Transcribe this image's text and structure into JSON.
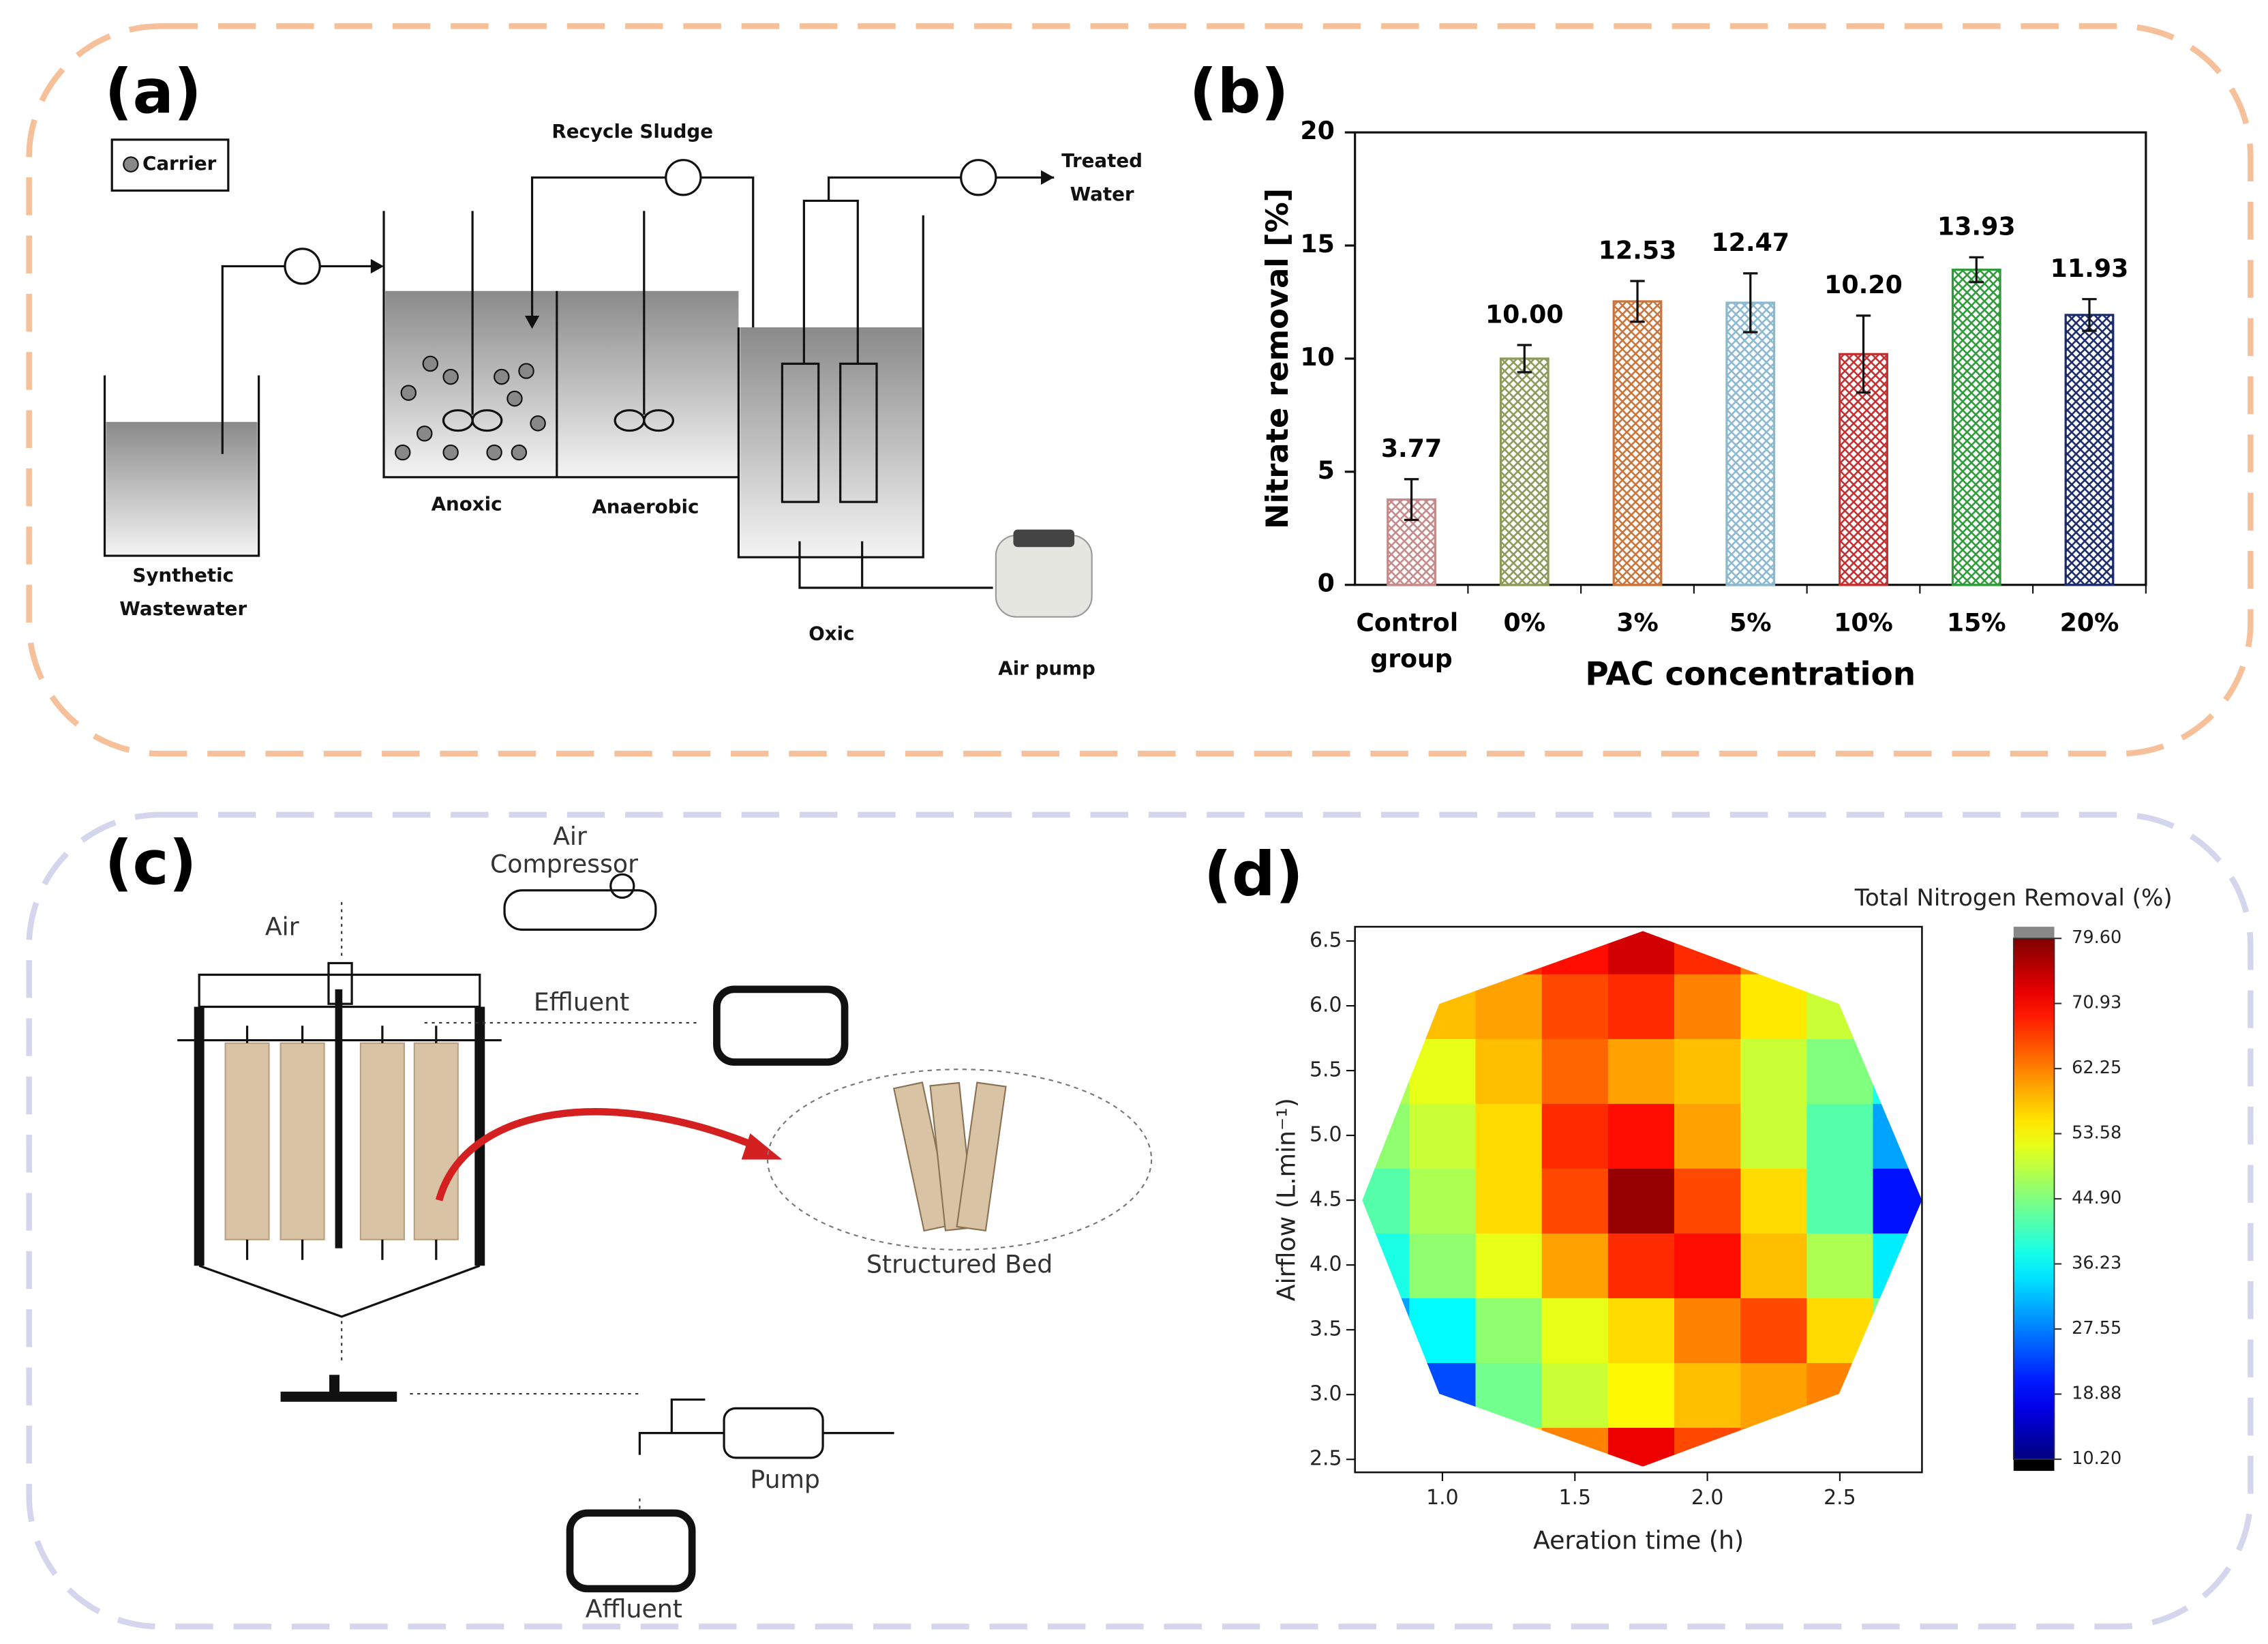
{
  "panel_labels": [
    "(a)",
    "(b)",
    "(c)",
    "(d)"
  ],
  "diagram_a": {
    "legend": "Carrier",
    "recycle": "Recycle Sludge",
    "treated": [
      "Treated",
      "Water"
    ],
    "influent": [
      "Synthetic",
      "Wastewater"
    ],
    "anoxic": "Anoxic",
    "anaerobic": "Anaerobic",
    "oxic": "Oxic",
    "air_pump": "Air pump"
  },
  "diagram_c": {
    "compressor": [
      "Air",
      "Compressor"
    ],
    "air": "Air",
    "effluent": "Effluent",
    "bed": "Structured Bed",
    "pump": "Pump",
    "affluent": "Affluent"
  },
  "chart_data": [
    {
      "type": "bar",
      "categories": [
        "Control group",
        "0%",
        "3%",
        "5%",
        "10%",
        "15%",
        "20%"
      ],
      "values": [
        3.77,
        10,
        12.53,
        12.47,
        10.2,
        13.93,
        11.93
      ],
      "value_labels": [
        "3.77",
        "10.00",
        "12.53",
        "12.47",
        "10.20",
        "13.93",
        "11.93"
      ],
      "errors": [
        0.9,
        0.6,
        0.9,
        1.3,
        1.7,
        0.55,
        0.7
      ],
      "colors": [
        "#c48a8a",
        "#8a9a5b",
        "#c8743a",
        "#8ab8d0",
        "#c03030",
        "#2e9a3a",
        "#1a2a6a"
      ],
      "xlabel": "PAC concentration",
      "ylabel": "Nitrate removal [%]",
      "ylim": [
        0,
        20
      ],
      "yticks": [
        0,
        5,
        10,
        15,
        20
      ]
    },
    {
      "type": "contour",
      "title": "Total Nitrogen Removal (%)",
      "xlabel": "Aeration time (h)",
      "ylabel": "Airflow (L.min⁻¹)",
      "x": [
        0.75,
        1.0,
        1.25,
        1.5,
        1.75,
        2.0,
        2.25,
        2.5,
        2.75
      ],
      "y": [
        2.5,
        3.0,
        3.5,
        4.0,
        4.5,
        5.0,
        5.5,
        6.0,
        6.5
      ],
      "z": [
        [
          null,
          null,
          56,
          62,
          72,
          66,
          62,
          null,
          null
        ],
        [
          26,
          24,
          44,
          50,
          54,
          58,
          60,
          62,
          50
        ],
        [
          30,
          36,
          46,
          52,
          56,
          62,
          66,
          56,
          45
        ],
        [
          38,
          46,
          52,
          60,
          68,
          70,
          58,
          48,
          35
        ],
        [
          42,
          48,
          56,
          66,
          78,
          66,
          56,
          42,
          20
        ],
        [
          46,
          50,
          56,
          68,
          70,
          60,
          50,
          42,
          30
        ],
        [
          48,
          52,
          58,
          64,
          60,
          58,
          50,
          45,
          38
        ],
        [
          55,
          58,
          60,
          66,
          68,
          62,
          55,
          50,
          46
        ],
        [
          null,
          null,
          68,
          70,
          74,
          68,
          62,
          null,
          null
        ]
      ],
      "xlim": [
        0.67,
        2.81
      ],
      "ylim": [
        2.4,
        6.61
      ],
      "xticks": [
        {
          "value": 1,
          "label": "1.0"
        },
        1.5,
        {
          "value": 2,
          "label": "2.0"
        },
        2.5
      ],
      "yticks": [
        2.5,
        {
          "value": 3,
          "label": "3.0"
        },
        3.5,
        {
          "value": 4,
          "label": "4.0"
        },
        4.5,
        {
          "value": 5,
          "label": "5.0"
        },
        5.5,
        {
          "value": 6,
          "label": "6.0"
        },
        6.5
      ],
      "zlim": [
        10.2,
        79.6
      ],
      "zticks": [
        {
          "value": 10.2,
          "label": "10.20"
        },
        18.88,
        27.55,
        36.23,
        {
          "value": 44.9,
          "label": "44.90"
        },
        53.58,
        62.25,
        70.93,
        {
          "value": 79.6,
          "label": "79.60"
        }
      ],
      "colormap": "jet"
    }
  ]
}
